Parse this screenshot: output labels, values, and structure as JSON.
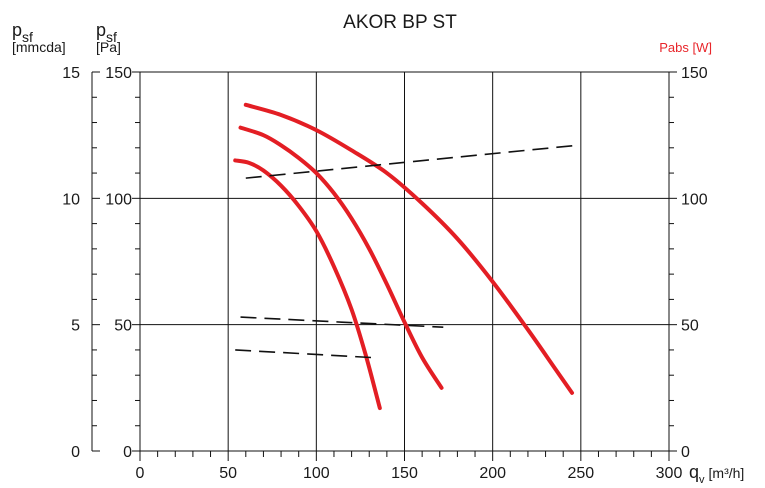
{
  "colors": {
    "curve": "#e31e24",
    "power": "#111111",
    "grid": "#111111",
    "power_label": "#e8262b"
  },
  "chart_data": {
    "type": "line",
    "title": "AKOR BP ST",
    "x_axis": {
      "label": "q",
      "label_sub": "v",
      "unit": "[m³/h]",
      "range": [
        0,
        300
      ],
      "ticks": [
        "0",
        "50",
        "100",
        "150",
        "200",
        "250",
        "300"
      ]
    },
    "y_left_outer": {
      "label": "p",
      "label_sub": "sf",
      "unit": "[mmcda]",
      "range": [
        0,
        15
      ],
      "ticks": [
        "0",
        "5",
        "10",
        "15"
      ]
    },
    "y_left_inner": {
      "label": "p",
      "label_sub": "sf",
      "unit": "[Pa]",
      "range": [
        0,
        150
      ],
      "ticks": [
        "0",
        "50",
        "100",
        "150"
      ]
    },
    "y_right": {
      "label": "Pabs [W]",
      "range": [
        0,
        150
      ],
      "ticks": [
        "0",
        "50",
        "100",
        "150"
      ]
    },
    "grid": true,
    "series": [
      {
        "kind": "pressure",
        "points": [
          [
            54,
            115
          ],
          [
            62,
            114
          ],
          [
            70,
            111
          ],
          [
            80,
            105
          ],
          [
            90,
            97
          ],
          [
            100,
            87
          ],
          [
            110,
            73
          ],
          [
            120,
            56
          ],
          [
            128,
            38
          ],
          [
            136,
            17
          ]
        ]
      },
      {
        "kind": "pressure",
        "points": [
          [
            57,
            128
          ],
          [
            70,
            125
          ],
          [
            80,
            121
          ],
          [
            90,
            116
          ],
          [
            100,
            110
          ],
          [
            110,
            102
          ],
          [
            120,
            92
          ],
          [
            130,
            80
          ],
          [
            140,
            66
          ],
          [
            150,
            51
          ],
          [
            160,
            37
          ],
          [
            171,
            25
          ]
        ]
      },
      {
        "kind": "pressure",
        "points": [
          [
            60,
            137
          ],
          [
            80,
            133
          ],
          [
            100,
            127
          ],
          [
            120,
            119
          ],
          [
            140,
            110
          ],
          [
            160,
            98
          ],
          [
            180,
            84
          ],
          [
            200,
            67
          ],
          [
            220,
            48
          ],
          [
            235,
            33
          ],
          [
            245,
            23
          ]
        ]
      },
      {
        "kind": "power",
        "points": [
          [
            60,
            108
          ],
          [
            248,
            121
          ]
        ]
      },
      {
        "kind": "power",
        "points": [
          [
            57,
            53
          ],
          [
            172,
            49
          ]
        ]
      },
      {
        "kind": "power",
        "points": [
          [
            54,
            40
          ],
          [
            131,
            37
          ]
        ]
      }
    ]
  }
}
